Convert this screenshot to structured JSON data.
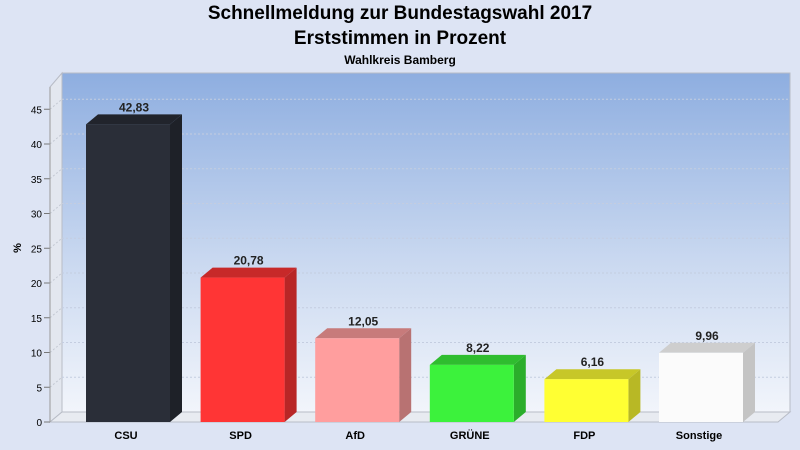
{
  "header": {
    "title_line1": "Schnellmeldung zur Bundestagswahl 2017",
    "title_line2": "Erststimmen in Prozent",
    "subtitle": "Wahlkreis Bamberg"
  },
  "chart_data": {
    "type": "bar",
    "title": "Schnellmeldung zur Bundestagswahl 2017 Erststimmen in Prozent",
    "subtitle": "Wahlkreis Bamberg",
    "xlabel": "",
    "ylabel": "%",
    "ylim": [
      0,
      48
    ],
    "yticks": [
      0,
      5,
      10,
      15,
      20,
      25,
      30,
      35,
      40,
      45
    ],
    "grid": true,
    "legend": "none",
    "categories": [
      "CSU",
      "SPD",
      "AfD",
      "GRÜNE",
      "FDP",
      "Sonstige"
    ],
    "values": [
      42.83,
      20.78,
      12.05,
      8.22,
      6.16,
      9.96
    ],
    "value_labels": [
      "42,83",
      "20,78",
      "12,05",
      "8,22",
      "6,16",
      "9,96"
    ],
    "colors": [
      "#2a2e38",
      "#ff3535",
      "#ff9e9e",
      "#3cf23c",
      "#ffff33",
      "#fbfbfb"
    ]
  }
}
